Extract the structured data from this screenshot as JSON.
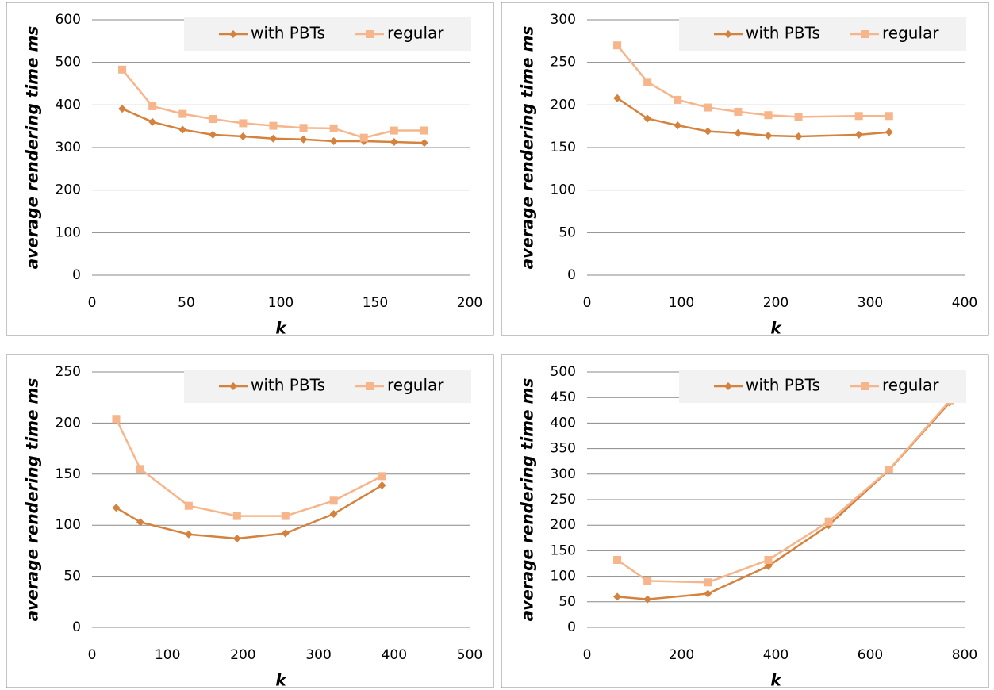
{
  "chart_data": [
    {
      "type": "line",
      "xlabel": "k",
      "ylabel": "average rendering time ms",
      "xlim": [
        0,
        200
      ],
      "xticks": [
        0,
        50,
        100,
        150,
        200
      ],
      "ylim": [
        0,
        600
      ],
      "yticks": [
        0,
        100,
        200,
        300,
        400,
        500,
        600
      ],
      "grid": true,
      "legend": "top",
      "series": [
        {
          "name": "with PBTs",
          "color": "#d4823e",
          "marker": "diamond",
          "x": [
            16,
            32,
            48,
            64,
            80,
            96,
            112,
            128,
            144,
            160,
            176
          ],
          "values": [
            391,
            360,
            342,
            330,
            326,
            321,
            319,
            315,
            315,
            313,
            311
          ]
        },
        {
          "name": "regular",
          "color": "#f6b58a",
          "marker": "square",
          "x": [
            16,
            32,
            48,
            64,
            80,
            96,
            112,
            128,
            144,
            160,
            176
          ],
          "values": [
            483,
            397,
            379,
            367,
            357,
            351,
            346,
            345,
            323,
            340,
            340
          ]
        }
      ]
    },
    {
      "type": "line",
      "xlabel": "k",
      "ylabel": "average rendering time ms",
      "xlim": [
        0,
        400
      ],
      "xticks": [
        0,
        100,
        200,
        300,
        400
      ],
      "ylim": [
        0,
        300
      ],
      "yticks": [
        0,
        50,
        100,
        150,
        200,
        250,
        300
      ],
      "grid": true,
      "legend": "top",
      "series": [
        {
          "name": "with PBTs",
          "color": "#d4823e",
          "marker": "diamond",
          "x": [
            32,
            64,
            96,
            128,
            160,
            192,
            224,
            288,
            320
          ],
          "values": [
            208,
            184,
            176,
            169,
            167,
            164,
            163,
            165,
            168
          ]
        },
        {
          "name": "regular",
          "color": "#f6b58a",
          "marker": "square",
          "x": [
            32,
            64,
            96,
            128,
            160,
            192,
            224,
            288,
            320
          ],
          "values": [
            270,
            227,
            206,
            197,
            192,
            188,
            186,
            187,
            187
          ]
        }
      ]
    },
    {
      "type": "line",
      "xlabel": "k",
      "ylabel": "average rendering time ms",
      "xlim": [
        0,
        500
      ],
      "xticks": [
        0,
        100,
        200,
        300,
        400,
        500
      ],
      "ylim": [
        0,
        250
      ],
      "yticks": [
        0,
        50,
        100,
        150,
        200,
        250
      ],
      "grid": true,
      "legend": "top",
      "series": [
        {
          "name": "with PBTs",
          "color": "#d4823e",
          "marker": "diamond",
          "x": [
            32,
            64,
            128,
            192,
            256,
            320,
            384
          ],
          "values": [
            117,
            103,
            91,
            87,
            92,
            111,
            139
          ]
        },
        {
          "name": "regular",
          "color": "#f6b58a",
          "marker": "square",
          "x": [
            32,
            64,
            128,
            192,
            256,
            320,
            384
          ],
          "values": [
            204,
            155,
            119,
            109,
            109,
            124,
            148
          ]
        }
      ]
    },
    {
      "type": "line",
      "xlabel": "k",
      "ylabel": "average rendering time ms",
      "xlim": [
        0,
        800
      ],
      "xticks": [
        0,
        200,
        400,
        600,
        800
      ],
      "ylim": [
        0,
        500
      ],
      "yticks": [
        0,
        50,
        100,
        150,
        200,
        250,
        300,
        350,
        400,
        450,
        500
      ],
      "grid": true,
      "legend": "top",
      "series": [
        {
          "name": "with PBTs",
          "color": "#d4823e",
          "marker": "diamond",
          "x": [
            64,
            128,
            256,
            384,
            512,
            640,
            768
          ],
          "values": [
            60,
            55,
            66,
            120,
            200,
            308,
            440
          ]
        },
        {
          "name": "regular",
          "color": "#f6b58a",
          "marker": "square",
          "x": [
            64,
            128,
            256,
            384,
            512,
            640,
            768
          ],
          "values": [
            132,
            91,
            88,
            132,
            207,
            309,
            443
          ]
        }
      ]
    }
  ]
}
